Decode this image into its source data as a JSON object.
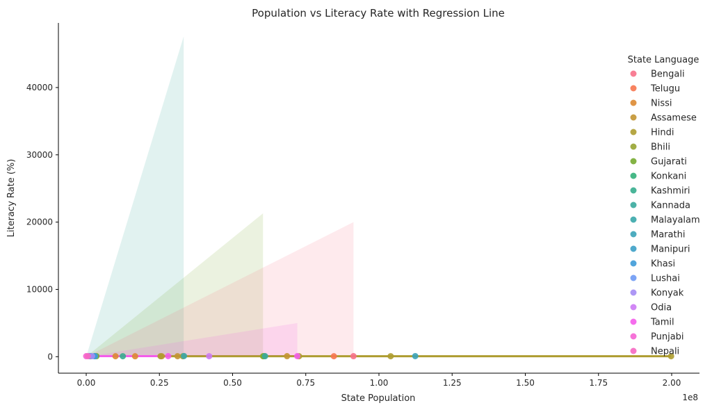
{
  "chart_data": {
    "type": "scatter",
    "title": "Population vs Literacy Rate with Regression Line",
    "xlabel": "State Population",
    "ylabel": "Literacy Rate (%)",
    "x_offset_label": "1e8",
    "xlim": [
      -0.095,
      2.095
    ],
    "ylim": [
      -2450,
      49600
    ],
    "x_ticks": [
      0.0,
      0.25,
      0.5,
      0.75,
      1.0,
      1.25,
      1.5,
      1.75,
      2.0
    ],
    "x_tick_labels": [
      "0.00",
      "0.25",
      "0.50",
      "0.75",
      "1.00",
      "1.25",
      "1.50",
      "1.75",
      "2.00"
    ],
    "y_ticks": [
      0,
      10000,
      20000,
      30000,
      40000
    ],
    "y_tick_labels": [
      "0",
      "10000",
      "20000",
      "30000",
      "40000"
    ],
    "grid": false,
    "legend": {
      "title": "State Language",
      "placement": "right"
    },
    "series": [
      {
        "name": "Bengali",
        "color": "#f77189",
        "points": [
          [
            0.913,
            77
          ]
        ]
      },
      {
        "name": "Telugu",
        "color": "#f7754f",
        "points": [
          [
            0.846,
            67
          ]
        ]
      },
      {
        "name": "Nissi",
        "color": "#dc8932",
        "points": [
          [
            0.014,
            65
          ],
          [
            0.1,
            67
          ],
          [
            0.167,
            66
          ]
        ]
      },
      {
        "name": "Assamese",
        "color": "#c39532",
        "points": [
          [
            0.258,
            72
          ],
          [
            0.312,
            73
          ],
          [
            0.686,
            74
          ]
        ]
      },
      {
        "name": "Hindi",
        "color": "#ae9d31",
        "points": [
          [
            0.254,
            70
          ],
          [
            1.04,
            69
          ],
          [
            1.998,
            68
          ],
          [
            0.727,
            70
          ],
          [
            0.33,
            67
          ]
        ]
      },
      {
        "name": "Bhili",
        "color": "#97a431",
        "points": [
          [
            0.604,
            70
          ]
        ]
      },
      {
        "name": "Gujarati",
        "color": "#77ab31",
        "points": [
          [
            0.035,
            78
          ],
          [
            0.607,
            79
          ]
        ]
      },
      {
        "name": "Konkani",
        "color": "#33b07a",
        "points": [
          [
            0.015,
            88
          ]
        ]
      },
      {
        "name": "Kashmiri",
        "color": "#36ad8e",
        "points": [
          [
            0.125,
            68
          ]
        ]
      },
      {
        "name": "Kannada",
        "color": "#38aa9d",
        "points": [
          [
            0.611,
            75
          ]
        ]
      },
      {
        "name": "Malayalam",
        "color": "#39a7aa",
        "points": [
          [
            0.334,
            94
          ]
        ]
      },
      {
        "name": "Marathi",
        "color": "#3ba3b8",
        "points": [
          [
            1.124,
            82
          ]
        ]
      },
      {
        "name": "Manipuri",
        "color": "#3ca0c7",
        "points": [
          [
            0.028,
            79
          ]
        ]
      },
      {
        "name": "Khasi",
        "color": "#3e9bd8",
        "points": [
          [
            0.03,
            74
          ]
        ]
      },
      {
        "name": "Lushai",
        "color": "#6e9af4",
        "points": [
          [
            0.011,
            91
          ]
        ]
      },
      {
        "name": "Konyak",
        "color": "#a48cf4",
        "points": [
          [
            0.02,
            79
          ]
        ]
      },
      {
        "name": "Odia",
        "color": "#cc7af4",
        "points": [
          [
            0.42,
            72
          ]
        ]
      },
      {
        "name": "Tamil",
        "color": "#f45deb",
        "points": [
          [
            0.28,
            80
          ],
          [
            0.721,
            80
          ]
        ]
      },
      {
        "name": "Punjabi",
        "color": "#f564d4",
        "points": [
          [
            0.0,
            76
          ]
        ]
      },
      {
        "name": "Nepali",
        "color": "#f668c2",
        "points": [
          [
            0.006,
            81
          ]
        ]
      }
    ],
    "confidence_bands": [
      {
        "series": "Kannada",
        "color": "#38aa9d",
        "x": [
          0.0,
          0.333
        ],
        "y": [
          0,
          47600
        ]
      },
      {
        "series": "Gujarati",
        "color": "#77ab31",
        "x": [
          0.0,
          0.604
        ],
        "y": [
          0,
          21300
        ]
      },
      {
        "series": "Bengali",
        "color": "#f77189",
        "x": [
          0.0,
          0.913
        ],
        "y": [
          0,
          20000
        ]
      },
      {
        "series": "Tamil",
        "color": "#f45deb",
        "x": [
          0.0,
          0.721
        ],
        "y": [
          0,
          5000
        ]
      }
    ],
    "regression_lines": [
      {
        "series": "Tamil",
        "color": "#f45deb",
        "x": [
          0.0,
          0.721
        ],
        "y": [
          80,
          80
        ]
      },
      {
        "series": "Hindi",
        "color": "#ae9d31",
        "x": [
          0.254,
          1.998
        ],
        "y": [
          70,
          68
        ]
      }
    ]
  }
}
